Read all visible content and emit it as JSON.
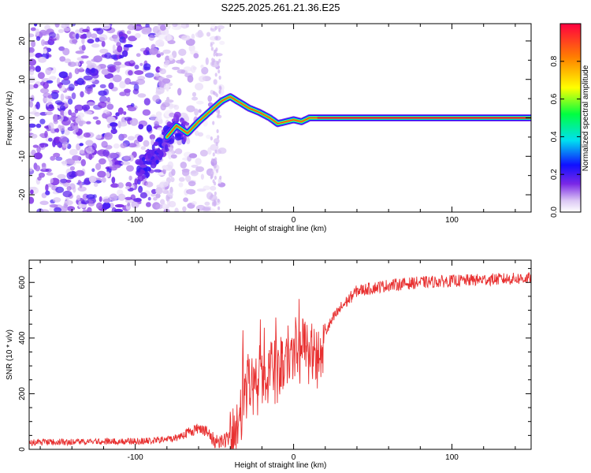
{
  "figure": {
    "title": "S225.2025.261.21.36.E25"
  },
  "chart_data": [
    {
      "type": "heatmap",
      "xlabel": "Height of straight line (km)",
      "ylabel": "Frequency (Hz)",
      "xlim": [
        -167,
        150
      ],
      "ylim": [
        -24.5,
        24.5
      ],
      "xticks": [
        -100,
        0,
        100
      ],
      "yticks": [
        -20,
        -10,
        0,
        10,
        20
      ],
      "colorbar": {
        "label": "Normalized spectral amplitude",
        "range": [
          0,
          1
        ],
        "ticks": [
          0.0,
          0.2,
          0.4,
          0.6,
          0.8
        ]
      },
      "dominant_ridge": {
        "x": [
          -95,
          -88,
          -80,
          -74,
          -67,
          -60,
          -52,
          -45,
          -40,
          -34,
          -28,
          -22,
          -15,
          -10,
          -5,
          0,
          5,
          10,
          20,
          50,
          95,
          150
        ],
        "y": [
          -13,
          -10,
          -5,
          -2,
          -4,
          -1,
          2,
          4.5,
          5.5,
          4,
          2.5,
          1.5,
          0,
          -1.5,
          -1,
          -0.5,
          -1,
          0,
          0,
          0,
          0,
          0
        ]
      },
      "noise_region": {
        "x_range": [
          -167,
          -85
        ],
        "amplitude": 0.3
      }
    },
    {
      "type": "line",
      "xlabel": "Height of straight line (km)",
      "ylabel": "SNR (10 * v/v)",
      "xlim": [
        -167,
        150
      ],
      "ylim": [
        0,
        680
      ],
      "xticks": [
        -100,
        0,
        100
      ],
      "yticks": [
        0,
        200,
        400,
        600
      ],
      "color": "#e83030",
      "trend": {
        "x": [
          -167,
          -90,
          -75,
          -65,
          -58,
          -50,
          -42,
          -37,
          -30,
          -20,
          -10,
          0,
          10,
          15,
          20,
          25,
          30,
          40,
          60,
          80,
          100,
          120,
          150
        ],
        "y": [
          25,
          30,
          40,
          65,
          80,
          30,
          35,
          55,
          230,
          260,
          300,
          330,
          360,
          320,
          420,
          470,
          510,
          570,
          590,
          600,
          605,
          610,
          615
        ]
      }
    }
  ]
}
